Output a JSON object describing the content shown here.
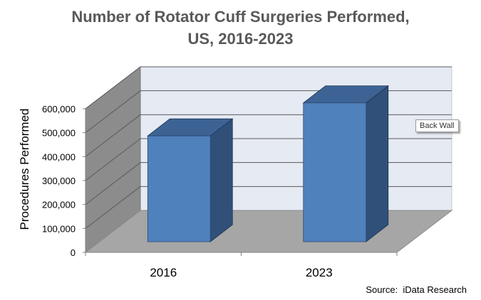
{
  "chart_data": {
    "type": "bar",
    "title_lines": [
      "Number of Rotator Cuff Surgeries Performed,",
      "US, 2016-2023"
    ],
    "categories": [
      "2016",
      "2023"
    ],
    "values": [
      442000,
      580000
    ],
    "xlabel": "",
    "ylabel": "Procedures Performed",
    "ylim": [
      0,
      600000
    ],
    "ytick_labels": [
      "0",
      "100,000",
      "200,000",
      "300,000",
      "400,000",
      "500,000",
      "600,000"
    ],
    "grid": true,
    "three_d": true,
    "legend": "none"
  },
  "tooltip": "Back Wall",
  "source": "Source:  iData Research",
  "colors": {
    "bar_front": "#4f81bd",
    "bar_side": "#30507a",
    "bar_top": "#3c6394",
    "back_wall": "#e5eaf3",
    "side_wall": "#8c8c8c",
    "floor": "#a6a6a6",
    "title": "#595959"
  }
}
